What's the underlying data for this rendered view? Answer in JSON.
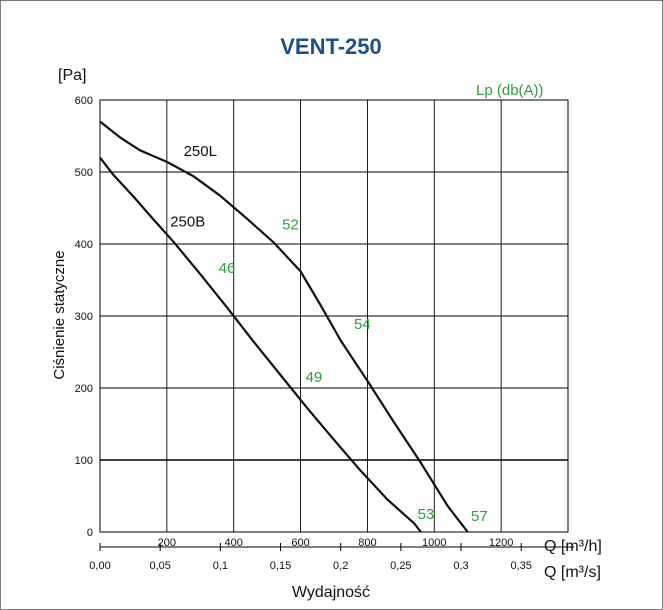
{
  "chart_data": {
    "type": "line",
    "title": "VENT-250",
    "y_unit": "[Pa]",
    "ylabel": "Ciśnienie statyczne",
    "xlabel": "Wydajność",
    "sound_label": "Lp (db(A))",
    "x_unit_primary": "Q [m³/h]",
    "x_unit_secondary": "Q [m³/s]",
    "xlim": [
      0,
      1400
    ],
    "ylim": [
      0,
      600
    ],
    "grid": true,
    "x_ticks": [
      200,
      400,
      600,
      800,
      1000,
      1200
    ],
    "y_ticks": [
      0,
      100,
      200,
      300,
      400,
      500,
      600
    ],
    "x2_ticks": [
      "0,00",
      "0,05",
      "0,1",
      "0,15",
      "0,2",
      "0,25",
      "0,3",
      "0,35"
    ],
    "x2_tick_values": [
      0,
      0.05,
      0.1,
      0.15,
      0.2,
      0.25,
      0.3,
      0.35
    ],
    "series": [
      {
        "name": "250L",
        "x": [
          0,
          60,
          120,
          200,
          280,
          360,
          440,
          520,
          600,
          660,
          720,
          800,
          880,
          960,
          1040,
          1100
        ],
        "y": [
          570,
          548,
          530,
          514,
          494,
          467,
          435,
          402,
          362,
          315,
          266,
          210,
          152,
          96,
          36,
          0
        ]
      },
      {
        "name": "250B",
        "x": [
          0,
          40,
          100,
          160,
          220,
          300,
          380,
          460,
          540,
          620,
          700,
          780,
          860,
          940,
          960
        ],
        "y": [
          520,
          496,
          466,
          434,
          403,
          358,
          312,
          264,
          218,
          172,
          128,
          85,
          45,
          12,
          0
        ]
      }
    ],
    "annotations": [
      {
        "text": "52",
        "x": 545,
        "y": 420
      },
      {
        "text": "46",
        "x": 355,
        "y": 360
      },
      {
        "text": "54",
        "x": 760,
        "y": 282
      },
      {
        "text": "49",
        "x": 615,
        "y": 208
      },
      {
        "text": "53",
        "x": 950,
        "y": 18
      },
      {
        "text": "57",
        "x": 1110,
        "y": 15
      }
    ]
  }
}
